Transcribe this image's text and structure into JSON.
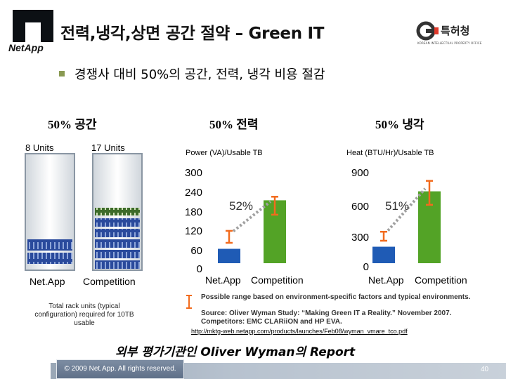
{
  "header": {
    "title": "전력,냉각,상면 공간 절약 – Green IT",
    "logo_text": "NetApp",
    "agency_logo_text": "특허청",
    "agency_logo_subtext": "KOREAN INTELLECTUAL PROPERTY OFFICE"
  },
  "bullet": "경쟁사 대비 50%의 공간, 전력, 냉각 비용 절감",
  "space": {
    "heading": "50% 공간",
    "left_units": "8 Units",
    "right_units": "17 Units",
    "left_label": "Net.App",
    "right_label": "Competition",
    "footnote": "Total rack units (typical configuration) required for 10TB usable",
    "units_shown": [
      8,
      17
    ]
  },
  "chart_data": [
    {
      "type": "bar",
      "heading": "50% 전력",
      "title": "Power (VA)/Usable TB",
      "categories": [
        "Net.App",
        "Competition"
      ],
      "values": [
        48,
        210
      ],
      "ranges": [
        [
          68,
          108
        ],
        [
          162,
          222
        ]
      ],
      "ylim": [
        0,
        300
      ],
      "yticks": [
        "300",
        "240",
        "180",
        "120",
        "60",
        "0"
      ],
      "annotation": "52%",
      "colors": [
        "#1f5bb5",
        "#53a326"
      ]
    },
    {
      "type": "bar",
      "heading": "50% 냉각",
      "title": "Heat (BTU/Hr)/Usable TB",
      "categories": [
        "Net.App",
        "Competition"
      ],
      "values": [
        165,
        720
      ],
      "ranges": [
        [
          225,
          315
        ],
        [
          585,
          825
        ]
      ],
      "ylim": [
        0,
        900
      ],
      "yticks": [
        "900",
        "600",
        "300",
        "0"
      ],
      "annotation": "51%",
      "colors": [
        "#1f5bb5",
        "#53a326"
      ]
    }
  ],
  "notes": {
    "legend": "Possible range based on environment-specific factors and typical environments.",
    "source": "Source: Oliver Wyman Study: “Making Green IT a Reality.” November 2007.",
    "competitors": "Competitors: EMC CLARiiON and HP EVA.",
    "link": "http://mktg-web.netapp.com/products/launches/Feb08/wyman_vmare_tco.pdf"
  },
  "report": "외부 평가기관인 Oliver Wyman의 Report",
  "footer": {
    "copyright": "© 2009 Net.App. All rights reserved.",
    "page": "40"
  }
}
